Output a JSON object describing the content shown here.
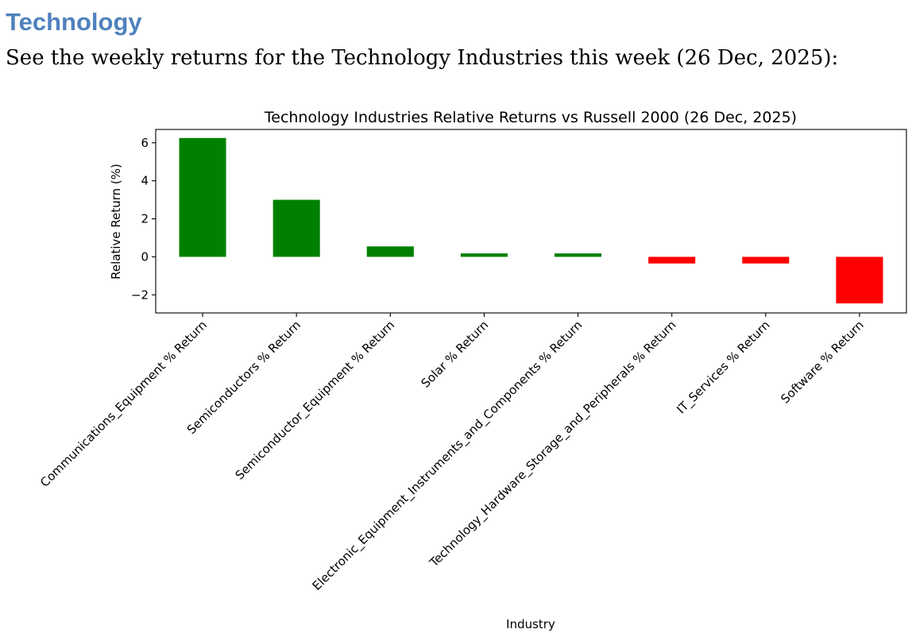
{
  "heading": "Technology",
  "intro": "See the weekly returns for the Technology Industries this week (26 Dec, 2025):",
  "chart_data": {
    "type": "bar",
    "title": "Technology Industries Relative Returns vs Russell 2000 (26 Dec, 2025)",
    "xlabel": "Industry",
    "ylabel": "Relative Return (%)",
    "categories": [
      "Communications_Equipment % Return",
      "Semiconductors % Return",
      "Semiconductor_Equipment % Return",
      "Solar % Return",
      "Electronic_Equipment_Instruments_and_Components % Return",
      "Technology_Hardware_Storage_and_Peripherals % Return",
      "IT_Services % Return",
      "Software % Return"
    ],
    "values": [
      6.25,
      3.0,
      0.55,
      0.18,
      0.18,
      -0.35,
      -0.35,
      -2.45
    ],
    "yticks": [
      -2,
      0,
      2,
      4,
      6
    ],
    "ytick_labels": [
      "−2",
      "0",
      "2",
      "4",
      "6"
    ],
    "ylim": [
      -2.95,
      6.7
    ],
    "positive_color": "#008000",
    "negative_color": "#ff0000",
    "grid": false,
    "legend": "none"
  }
}
